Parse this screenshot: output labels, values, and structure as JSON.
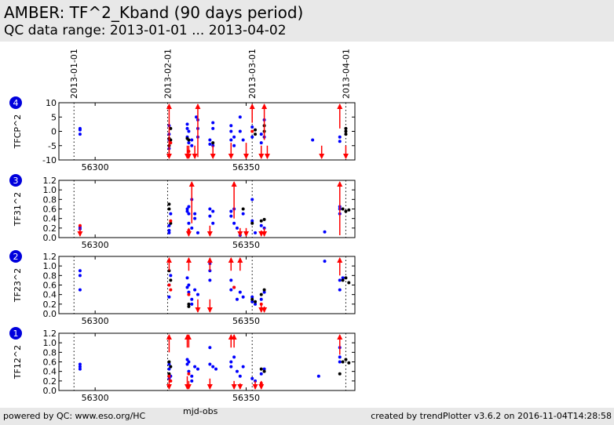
{
  "header": {
    "title": "AMBER: TF^2_Kband (90 days period)",
    "subtitle": "QC data range: 2013-01-01 ... 2013-04-02"
  },
  "footer": {
    "left": "powered by QC: www.eso.org/HC",
    "right": "created by trendPlotter v3.6.2 on 2016-11-04T14:28:58"
  },
  "colors": {
    "normal": "#0000ff",
    "secondary": "#000000",
    "outlier": "#ff0000",
    "badge": "#0000dd"
  },
  "chart_data": {
    "type": "scatter",
    "xlabel": "mjd-obs",
    "xlim": [
      56288,
      56386
    ],
    "date_markers": [
      {
        "label": "2013-01-01",
        "mjd": 56293
      },
      {
        "label": "2013-02-01",
        "mjd": 56324
      },
      {
        "label": "2013-03-01",
        "mjd": 56352
      },
      {
        "label": "2013-04-01",
        "mjd": 56383
      }
    ],
    "x_ticks": [
      56300,
      56350
    ],
    "panels": [
      {
        "badge": "4",
        "ylabel": "TFCP^2",
        "ylim": [
          -10,
          10
        ],
        "yticks": [
          -10,
          -5,
          0,
          5,
          10
        ],
        "blue": [
          [
            56295,
            0.5
          ],
          [
            56295,
            -1
          ],
          [
            56295,
            1
          ],
          [
            56324.5,
            -1
          ],
          [
            56324.5,
            -3
          ],
          [
            56324.5,
            -6
          ],
          [
            56324.5,
            2
          ],
          [
            56330.5,
            1
          ],
          [
            56330.5,
            -2
          ],
          [
            56330.5,
            2.5
          ],
          [
            56331,
            0
          ],
          [
            56331,
            -4
          ],
          [
            56332,
            -5
          ],
          [
            56332,
            -3
          ],
          [
            56333.5,
            5
          ],
          [
            56334,
            1
          ],
          [
            56334,
            -2
          ],
          [
            56334,
            4
          ],
          [
            56338,
            -3
          ],
          [
            56338,
            -4.5
          ],
          [
            56339,
            1
          ],
          [
            56339,
            3
          ],
          [
            56339,
            -5
          ],
          [
            56345,
            0
          ],
          [
            56345,
            -3
          ],
          [
            56345,
            2
          ],
          [
            56346,
            -2
          ],
          [
            56346,
            -5
          ],
          [
            56348,
            5
          ],
          [
            56348,
            0
          ],
          [
            56349,
            -3
          ],
          [
            56352,
            -2
          ],
          [
            56352,
            1.5
          ],
          [
            56355,
            -1
          ],
          [
            56355,
            -4
          ],
          [
            56356,
            4
          ],
          [
            56356,
            -2
          ],
          [
            56372,
            -3
          ],
          [
            56381,
            -2
          ],
          [
            56381,
            -3.5
          ]
        ],
        "black": [
          [
            56324.5,
            -2.5
          ],
          [
            56324.5,
            -5
          ],
          [
            56325,
            1
          ],
          [
            56325,
            -3
          ],
          [
            56330.5,
            -2.5
          ],
          [
            56331,
            -3
          ],
          [
            56339,
            -4
          ],
          [
            56353,
            -1
          ],
          [
            56353,
            0.5
          ],
          [
            56356,
            0
          ],
          [
            56356,
            2
          ],
          [
            56383,
            0
          ],
          [
            56383,
            -1
          ],
          [
            56383,
            1
          ]
        ],
        "red": [
          [
            56325,
            -4
          ],
          [
            56331,
            -7
          ],
          [
            56352,
            0
          ]
        ],
        "arrows_up": [
          [
            56324.5,
            -8
          ],
          [
            56334,
            -9
          ],
          [
            56352,
            3
          ],
          [
            56356,
            -3
          ],
          [
            56381,
            1
          ]
        ],
        "arrows_down": [
          [
            56324.5,
            -2
          ],
          [
            56330.5,
            -5
          ],
          [
            56331,
            -5
          ],
          [
            56333,
            -5
          ],
          [
            56339,
            -5
          ],
          [
            56345,
            -4
          ],
          [
            56350,
            -4
          ],
          [
            56355,
            -5
          ],
          [
            56357,
            -5
          ],
          [
            56375,
            -5
          ],
          [
            56383,
            -5
          ]
        ]
      },
      {
        "badge": "3",
        "ylabel": "TF31^2",
        "ylim": [
          0,
          1.2
        ],
        "yticks": [
          0.0,
          0.2,
          0.4,
          0.6,
          0.8,
          1.0,
          1.2
        ],
        "blue": [
          [
            56295,
            0.18
          ],
          [
            56295,
            0.22
          ],
          [
            56324.5,
            0.25
          ],
          [
            56324.5,
            0.15
          ],
          [
            56324.5,
            0.1
          ],
          [
            56325,
            0.5
          ],
          [
            56330.5,
            0.55
          ],
          [
            56330.5,
            0.6
          ],
          [
            56331,
            0.5
          ],
          [
            56331,
            0.65
          ],
          [
            56331,
            0.3
          ],
          [
            56332,
            0.2
          ],
          [
            56332,
            0.8
          ],
          [
            56333,
            0.5
          ],
          [
            56333,
            0.4
          ],
          [
            56334,
            0.1
          ],
          [
            56338,
            0.6
          ],
          [
            56338,
            0.45
          ],
          [
            56339,
            0.55
          ],
          [
            56339,
            0.3
          ],
          [
            56345,
            0.45
          ],
          [
            56345,
            0.55
          ],
          [
            56346,
            0.3
          ],
          [
            56346,
            0.6
          ],
          [
            56347,
            0.2
          ],
          [
            56348,
            0.05
          ],
          [
            56349,
            0.5
          ],
          [
            56352,
            0.8
          ],
          [
            56352,
            0.35
          ],
          [
            56353,
            0.1
          ],
          [
            56355,
            0.25
          ],
          [
            56356,
            0.2
          ],
          [
            56376,
            0.12
          ],
          [
            56381,
            0.6
          ],
          [
            56381,
            0.5
          ],
          [
            56381,
            0.65
          ]
        ],
        "black": [
          [
            56324.5,
            0.7
          ],
          [
            56324.5,
            0.6
          ],
          [
            56325,
            0.3
          ],
          [
            56349,
            0.6
          ],
          [
            56352,
            0.3
          ],
          [
            56355,
            0.35
          ],
          [
            56356,
            0.38
          ],
          [
            56382,
            0.6
          ],
          [
            56383,
            0.55
          ],
          [
            56384,
            0.58
          ]
        ],
        "red": [
          [
            56295,
            0.25
          ],
          [
            56325,
            0.35
          ],
          [
            56331,
            0.15
          ],
          [
            56355,
            0.1
          ]
        ],
        "arrows_up": [
          [
            56332,
            0.3
          ],
          [
            56346,
            0.4
          ],
          [
            56381,
            0.05
          ]
        ],
        "arrows_down": [
          [
            56295,
            0.2
          ],
          [
            56331,
            0.2
          ],
          [
            56338,
            0.25
          ],
          [
            56348,
            0.2
          ],
          [
            56350,
            0.2
          ],
          [
            56355,
            0.15
          ],
          [
            56356,
            0.2
          ]
        ]
      },
      {
        "badge": "2",
        "ylabel": "TF23^2",
        "ylim": [
          0,
          1.2
        ],
        "yticks": [
          0.0,
          0.2,
          0.4,
          0.6,
          0.8,
          1.0,
          1.2
        ],
        "blue": [
          [
            56295,
            0.5
          ],
          [
            56295,
            0.8
          ],
          [
            56295,
            0.9
          ],
          [
            56324.5,
            0.35
          ],
          [
            56324.5,
            0.6
          ],
          [
            56325,
            0.8
          ],
          [
            56330.5,
            0.75
          ],
          [
            56330.5,
            0.55
          ],
          [
            56331,
            0.6
          ],
          [
            56331,
            0.45
          ],
          [
            56332,
            0.3
          ],
          [
            56332,
            0.2
          ],
          [
            56333,
            0.5
          ],
          [
            56334,
            0.4
          ],
          [
            56338,
            1.05
          ],
          [
            56338,
            0.7
          ],
          [
            56338,
            0.9
          ],
          [
            56345,
            0.5
          ],
          [
            56345,
            0.7
          ],
          [
            56346,
            0.55
          ],
          [
            56347,
            0.3
          ],
          [
            56348,
            0.45
          ],
          [
            56349,
            0.35
          ],
          [
            56352,
            0.25
          ],
          [
            56352,
            0.35
          ],
          [
            56353,
            0.2
          ],
          [
            56355,
            0.3
          ],
          [
            56356,
            0.45
          ],
          [
            56376,
            1.1
          ],
          [
            56381,
            0.7
          ],
          [
            56381,
            0.5
          ],
          [
            56382,
            0.75
          ]
        ],
        "black": [
          [
            56324.5,
            1.1
          ],
          [
            56324.5,
            0.9
          ],
          [
            56325,
            0.7
          ],
          [
            56331,
            0.2
          ],
          [
            56331,
            0.15
          ],
          [
            56352,
            0.3
          ],
          [
            56353,
            0.25
          ],
          [
            56355,
            0.4
          ],
          [
            56356,
            0.5
          ],
          [
            56382,
            0.7
          ],
          [
            56383,
            0.75
          ],
          [
            56384,
            0.65
          ]
        ],
        "red": [
          [
            56324.5,
            0.6
          ],
          [
            56325,
            0.5
          ],
          [
            56331,
            0.4
          ],
          [
            56346,
            0.55
          ],
          [
            56355,
            0.2
          ]
        ],
        "arrows_up": [
          [
            56324.5,
            0.9
          ],
          [
            56331,
            0.9
          ],
          [
            56338,
            0.9
          ],
          [
            56345,
            0.9
          ],
          [
            56348,
            0.9
          ],
          [
            56381,
            0.8
          ]
        ],
        "arrows_down": [
          [
            56334,
            0.3
          ],
          [
            56338,
            0.3
          ],
          [
            56355,
            0.2
          ],
          [
            56356,
            0.15
          ]
        ]
      },
      {
        "badge": "1",
        "ylabel": "TF12^2",
        "ylim": [
          0,
          1.2
        ],
        "yticks": [
          0.0,
          0.2,
          0.4,
          0.6,
          0.8,
          1.0,
          1.2
        ],
        "blue": [
          [
            56295,
            0.5
          ],
          [
            56295,
            0.55
          ],
          [
            56295,
            0.45
          ],
          [
            56324.5,
            0.45
          ],
          [
            56324.5,
            0.55
          ],
          [
            56324.5,
            0.25
          ],
          [
            56325,
            0.3
          ],
          [
            56330.5,
            0.65
          ],
          [
            56330.5,
            0.55
          ],
          [
            56331,
            0.6
          ],
          [
            56331,
            0.4
          ],
          [
            56332,
            0.3
          ],
          [
            56332,
            0.2
          ],
          [
            56333,
            0.5
          ],
          [
            56334,
            0.45
          ],
          [
            56338,
            0.9
          ],
          [
            56338,
            0.55
          ],
          [
            56339,
            0.5
          ],
          [
            56340,
            0.45
          ],
          [
            56345,
            0.5
          ],
          [
            56345,
            0.6
          ],
          [
            56346,
            0.7
          ],
          [
            56347,
            0.4
          ],
          [
            56348,
            0.3
          ],
          [
            56349,
            0.5
          ],
          [
            56352,
            0.25
          ],
          [
            56353,
            0.2
          ],
          [
            56355,
            0.35
          ],
          [
            56356,
            0.45
          ],
          [
            56374,
            0.3
          ],
          [
            56381,
            0.9
          ],
          [
            56381,
            0.7
          ],
          [
            56381,
            0.6
          ]
        ],
        "black": [
          [
            56324.5,
            0.6
          ],
          [
            56324.5,
            0.35
          ],
          [
            56325,
            0.5
          ],
          [
            56355,
            0.45
          ],
          [
            56356,
            0.4
          ],
          [
            56381,
            0.35
          ],
          [
            56382,
            0.6
          ],
          [
            56383,
            0.65
          ],
          [
            56384,
            0.58
          ]
        ],
        "red": [
          [
            56324.5,
            0.3
          ],
          [
            56325,
            0.2
          ],
          [
            56331,
            0.35
          ],
          [
            56355,
            0.15
          ]
        ],
        "arrows_up": [
          [
            56324.5,
            0.8
          ],
          [
            56330.5,
            0.9
          ],
          [
            56331,
            0.9
          ],
          [
            56345,
            0.9
          ],
          [
            56346,
            0.9
          ],
          [
            56381,
            0.75
          ]
        ],
        "arrows_down": [
          [
            56324.5,
            0.3
          ],
          [
            56330.5,
            0.3
          ],
          [
            56331,
            0.2
          ],
          [
            56338,
            0.25
          ],
          [
            56346,
            0.2
          ],
          [
            56348,
            0.15
          ],
          [
            56353,
            0.2
          ],
          [
            56355,
            0.2
          ]
        ]
      }
    ]
  }
}
